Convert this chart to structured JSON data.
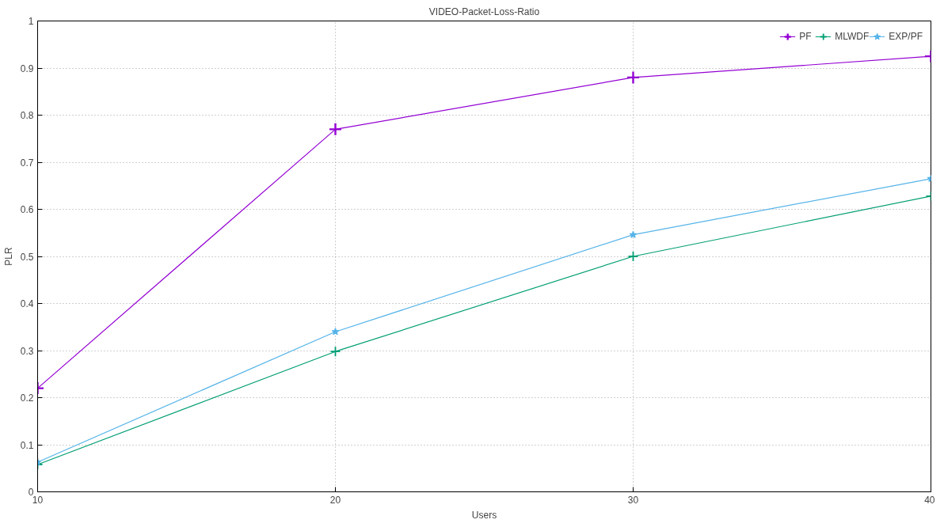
{
  "chart_data": {
    "type": "line",
    "title": "VIDEO-Packet-Loss-Ratio",
    "xlabel": "Users",
    "ylabel": "PLR",
    "x": [
      10,
      20,
      30,
      40
    ],
    "series": [
      {
        "name": "PF",
        "color": "#9400d3",
        "marker": "cross",
        "values": [
          0.22,
          0.77,
          0.88,
          0.925
        ]
      },
      {
        "name": "MLWDF",
        "color": "#009e73",
        "marker": "cross",
        "values": [
          0.058,
          0.298,
          0.5,
          0.628
        ]
      },
      {
        "name": "EXP/PF",
        "color": "#56b4e9",
        "marker": "star",
        "values": [
          0.063,
          0.34,
          0.546,
          0.665
        ]
      }
    ],
    "xlim": [
      10,
      40
    ],
    "xticks": [
      10,
      20,
      30,
      40
    ],
    "ylim": [
      0,
      1
    ],
    "yticks": [
      0,
      0.1,
      0.2,
      0.3,
      0.4,
      0.5,
      0.6,
      0.7,
      0.8,
      0.9,
      1
    ],
    "grid": true,
    "legend": "top right",
    "line_style": "solid"
  }
}
